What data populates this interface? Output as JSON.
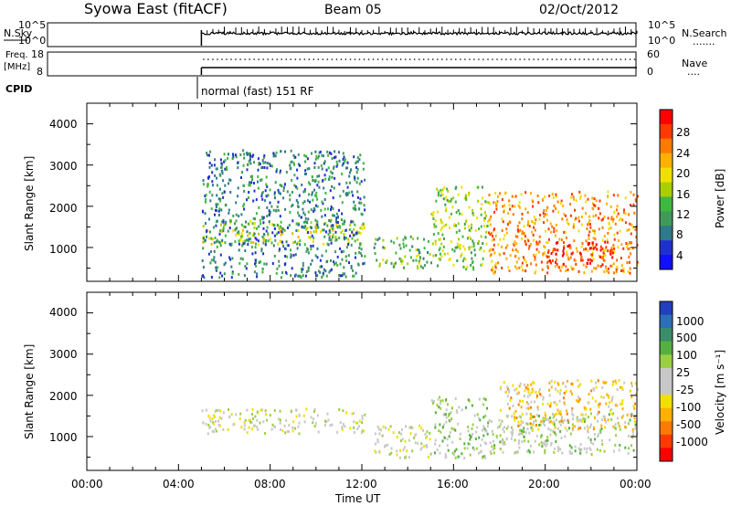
{
  "header": {
    "title": "Syowa East (fitACF)",
    "beam": "Beam 05",
    "date": "02/Oct/2012"
  },
  "strip_nsky": {
    "label": "N.Sky",
    "ticks_left": [
      "10^5",
      "10^0"
    ],
    "ticks_right": [
      "10^5",
      "10^0"
    ],
    "right_label": "N.Search",
    "right_marker": "......."
  },
  "strip_freq": {
    "label_top": "Freq.",
    "label_bottom": "[MHz]",
    "ticks_left": [
      "18",
      "8"
    ],
    "ticks_right": [
      "60",
      "0"
    ],
    "right_label": "Nave",
    "right_marker": "...."
  },
  "strip_cpid": {
    "label": "CPID",
    "mode": "normal (fast) 151 RF"
  },
  "panel_power": {
    "ylabel": "Slant Range [km]",
    "yticks": [
      "4000",
      "3000",
      "2000",
      "1000"
    ],
    "colorbar_label": "Power [dB]",
    "colorbar_ticks": [
      "28",
      "24",
      "20",
      "16",
      "12",
      "8",
      "4"
    ],
    "colors": [
      "#ff0000",
      "#ff3a00",
      "#ff7a00",
      "#ffb000",
      "#f0e000",
      "#a8d000",
      "#3fb83f",
      "#3f9a5a",
      "#2f7a8a",
      "#2030d0",
      "#1010ff"
    ]
  },
  "panel_velocity": {
    "ylabel": "Slant Range [km]",
    "yticks": [
      "4000",
      "3000",
      "2000",
      "1000"
    ],
    "colorbar_label": "Velocity [m s⁻¹]",
    "colorbar_ticks": [
      "1000",
      "500",
      "100",
      "25",
      "-25",
      "-100",
      "-500",
      "-1000"
    ],
    "colors": [
      "#2040c0",
      "#2b6fb8",
      "#3a8f6a",
      "#55b040",
      "#9ad040",
      "#c8c8c8",
      "#c8c8c8",
      "#f0e000",
      "#ffb000",
      "#ff7a00",
      "#ff3a00",
      "#ff0000"
    ]
  },
  "xaxis": {
    "label": "Time UT",
    "ticks": [
      "00:00",
      "04:00",
      "08:00",
      "12:00",
      "16:00",
      "20:00",
      "00:00"
    ]
  },
  "chart_data": [
    {
      "type": "heatmap",
      "title": "Syowa East (fitACF) Beam 05 02/Oct/2012",
      "xlabel": "Time UT",
      "ylabel": "Slant Range [km]",
      "xlim_hours": [
        0,
        24
      ],
      "ylim": [
        180,
        4500
      ],
      "colorbar": {
        "label": "Power [dB]",
        "range": [
          0,
          30
        ]
      },
      "regions": [
        {
          "t": [
            5.0,
            12.1
          ],
          "range": [
            1100,
            1700
          ],
          "value": 16
        },
        {
          "t": [
            5.0,
            12.1
          ],
          "range": [
            300,
            3400
          ],
          "value": 8
        },
        {
          "t": [
            12.5,
            15.0
          ],
          "range": [
            500,
            1300
          ],
          "value": 12
        },
        {
          "t": [
            15.0,
            17.5
          ],
          "range": [
            500,
            2500
          ],
          "value": 14
        },
        {
          "t": [
            17.5,
            24.0
          ],
          "range": [
            400,
            2400
          ],
          "value": 22
        },
        {
          "t": [
            20.0,
            23.0
          ],
          "range": [
            600,
            1200
          ],
          "value": 28
        }
      ]
    },
    {
      "type": "heatmap",
      "title": "Syowa East (fitACF) Beam 05 02/Oct/2012",
      "xlabel": "Time UT",
      "ylabel": "Slant Range [km]",
      "xlim_hours": [
        0,
        24
      ],
      "ylim": [
        180,
        4500
      ],
      "colorbar": {
        "label": "Velocity [m s⁻¹]",
        "range": [
          -1000,
          1000
        ]
      },
      "regions": [
        {
          "t": [
            5.0,
            12.1
          ],
          "range": [
            1100,
            1700
          ],
          "value": 0
        },
        {
          "t": [
            12.5,
            15.0
          ],
          "range": [
            500,
            1300
          ],
          "value": 0
        },
        {
          "t": [
            15.0,
            17.5
          ],
          "range": [
            500,
            2000
          ],
          "value": 200
        },
        {
          "t": [
            17.5,
            24.0
          ],
          "range": [
            600,
            1600
          ],
          "value": 150
        },
        {
          "t": [
            18.0,
            24.0
          ],
          "range": [
            1200,
            2400
          ],
          "value": -300
        }
      ]
    }
  ],
  "strip_data": {
    "nsky_start_hour": 5.0,
    "freq_start_hour": 5.0,
    "cpid_start_hour": 5.0
  }
}
